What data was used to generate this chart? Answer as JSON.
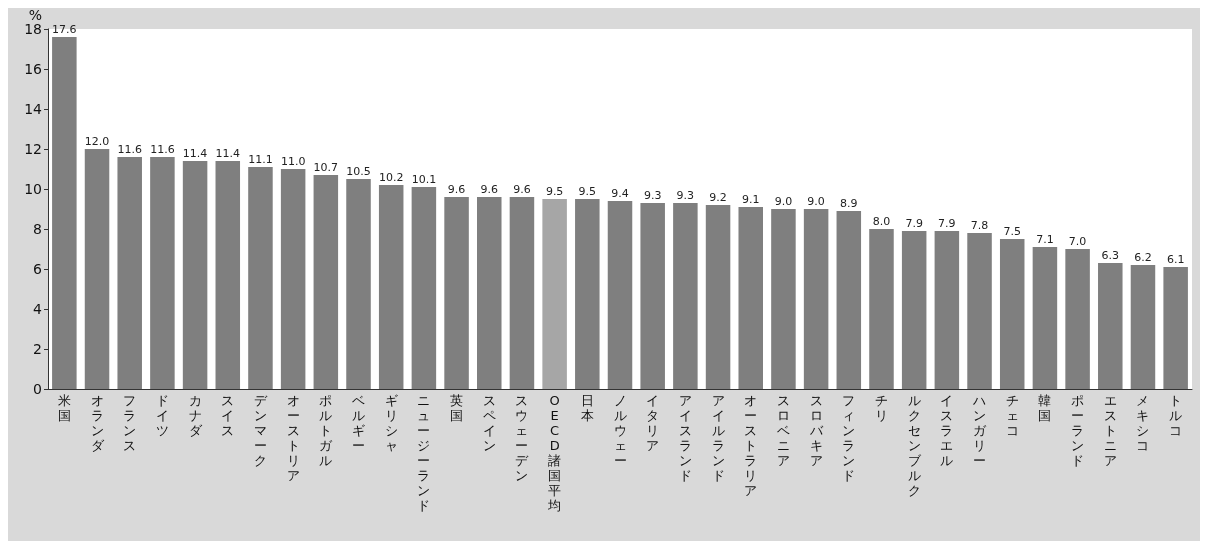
{
  "chart_data": {
    "type": "bar",
    "ylabel": "%",
    "categories": [
      "米国",
      "オランダ",
      "フランス",
      "ドイツ",
      "カナダ",
      "スイス",
      "デンマーク",
      "オーストリア",
      "ポルトガル",
      "ベルギー",
      "ギリシャ",
      "ニュージーランド",
      "英国",
      "スペイン",
      "スウェーデン",
      "OECD諸国平均",
      "日本",
      "ノルウェー",
      "イタリア",
      "アイスランド",
      "アイルランド",
      "オーストラリア",
      "スロベニア",
      "スロバキア",
      "フィンランド",
      "チリ",
      "ルクセンブルク",
      "イスラエル",
      "ハンガリー",
      "チェコ",
      "韓国",
      "ポーランド",
      "エストニア",
      "メキシコ",
      "トルコ"
    ],
    "values": [
      17.6,
      12.0,
      11.6,
      11.6,
      11.4,
      11.4,
      11.1,
      11.0,
      10.7,
      10.5,
      10.2,
      10.1,
      9.6,
      9.6,
      9.6,
      9.5,
      9.5,
      9.4,
      9.3,
      9.3,
      9.2,
      9.1,
      9.0,
      9.0,
      8.9,
      8.0,
      7.9,
      7.9,
      7.8,
      7.5,
      7.1,
      7.0,
      6.3,
      6.2,
      6.1
    ],
    "colors": [
      "#7f7f7f",
      "#7f7f7f",
      "#7f7f7f",
      "#7f7f7f",
      "#7f7f7f",
      "#7f7f7f",
      "#7f7f7f",
      "#7f7f7f",
      "#7f7f7f",
      "#7f7f7f",
      "#7f7f7f",
      "#7f7f7f",
      "#7f7f7f",
      "#7f7f7f",
      "#7f7f7f",
      "#a6a6a6",
      "#7f7f7f",
      "#7f7f7f",
      "#7f7f7f",
      "#7f7f7f",
      "#7f7f7f",
      "#7f7f7f",
      "#7f7f7f",
      "#7f7f7f",
      "#7f7f7f",
      "#7f7f7f",
      "#7f7f7f",
      "#7f7f7f",
      "#7f7f7f",
      "#7f7f7f",
      "#7f7f7f",
      "#7f7f7f",
      "#7f7f7f",
      "#7f7f7f",
      "#7f7f7f"
    ],
    "value_labels": [
      "17.6",
      "12.0",
      "11.6",
      "11.6",
      "11.4",
      "11.4",
      "11.1",
      "11.0",
      "10.7",
      "10.5",
      "10.2",
      "10.1",
      "9.6",
      "9.6",
      "9.6",
      "9.5",
      "9.5",
      "9.4",
      "9.3",
      "9.3",
      "9.2",
      "9.1",
      "9.0",
      "9.0",
      "8.9",
      "8.0",
      "7.9",
      "7.9",
      "7.8",
      "7.5",
      "7.1",
      "7.0",
      "6.3",
      "6.2",
      "6.1"
    ],
    "ylim": [
      0,
      18
    ],
    "yticks": [
      0,
      2,
      4,
      6,
      8,
      10,
      12,
      14,
      16,
      18
    ],
    "grid": false
  }
}
